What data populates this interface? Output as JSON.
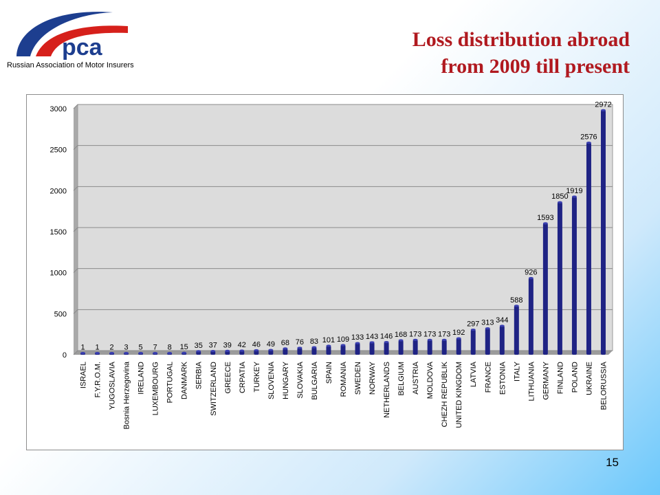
{
  "header": {
    "organization": "Russian Association of Motor Insurers",
    "logo_text": "pca",
    "title_line1": "Loss distribution abroad",
    "title_line2": "from 2009 till present"
  },
  "colors": {
    "title": "#b0191f",
    "bar": "#1f2384",
    "logo_red": "#d6201b",
    "logo_blue": "#1d3e8f"
  },
  "page_number": "15",
  "chart_data": {
    "type": "bar",
    "categories": [
      "ISRAEL",
      "F.Y.R.O.M.",
      "YUGOSLAVIA",
      "Bosnia Herzegovina",
      "IRELAND",
      "LUXEMBOURG",
      "PORTUGAL",
      "DANMARK",
      "SERBIA",
      "SWITZERLAND",
      "GREECE",
      "CRPATIA",
      "TURKEY",
      "SLOVENIA",
      "HUNGARY",
      "SLOVAKIA",
      "BULGARIA",
      "SPAIN",
      "ROMANIA",
      "SWEDEN",
      "NORWAY",
      "NETHERLANDS",
      "BELGIUM",
      "AUSTRIA",
      "MOLDOVA",
      "CHEZH REPUBLIK",
      "UNITED KINGDOM",
      "LATVIA",
      "FRANCE",
      "ESTONIA",
      "ITALY",
      "LITHUANIA",
      "GERMANY",
      "FINLAND",
      "POLAND",
      "UKRAINE",
      "BELORUSSIA"
    ],
    "values": [
      1,
      1,
      2,
      3,
      5,
      7,
      8,
      15,
      35,
      37,
      39,
      42,
      46,
      49,
      68,
      76,
      83,
      101,
      109,
      133,
      143,
      146,
      168,
      173,
      173,
      173,
      192,
      297,
      313,
      344,
      588,
      926,
      1593,
      1850,
      1919,
      2576,
      2972
    ],
    "value_labels": [
      "1",
      "1",
      "2",
      "3",
      "5",
      "7",
      "8",
      "15",
      "35",
      "37",
      "39",
      "42",
      "46",
      "49",
      "68",
      "76",
      "83",
      "101",
      "109",
      "133",
      "143",
      "146",
      "168",
      "173",
      "173",
      "173",
      "192",
      "297",
      "313",
      "344",
      "588",
      "926",
      "1593",
      "1850",
      "1919",
      "2576",
      "2972"
    ],
    "ylim": [
      0,
      3000
    ],
    "yticks": [
      "0",
      "500",
      "1000",
      "1500",
      "2000",
      "2500",
      "3000"
    ],
    "grid": true,
    "legend": "none"
  }
}
